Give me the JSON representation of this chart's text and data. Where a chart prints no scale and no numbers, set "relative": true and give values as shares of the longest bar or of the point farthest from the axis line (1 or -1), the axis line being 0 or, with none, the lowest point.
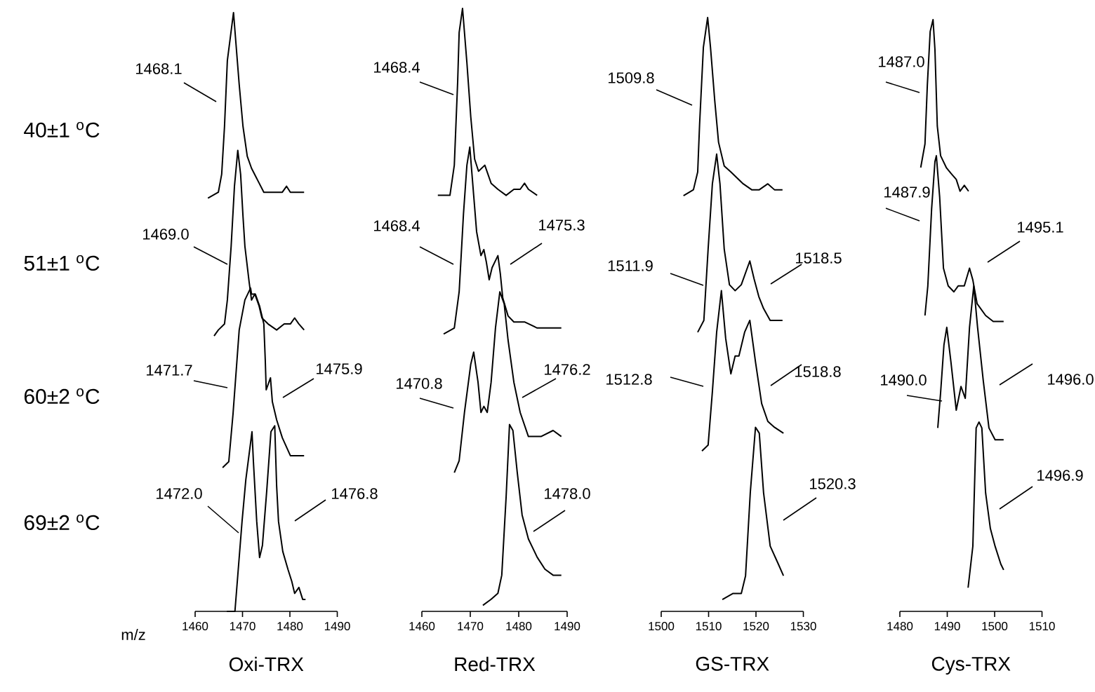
{
  "chart_data": [
    {
      "type": "line",
      "relative": true,
      "xlabel": "Oxi-TRX",
      "xlim": [
        1460,
        1490
      ],
      "xticks": [
        1460,
        1470,
        1480,
        1490
      ],
      "series": [
        {
          "color": "#000000",
          "x": [
            1462.7,
            1464.9,
            1465.6,
            1466.2,
            1466.8,
            1468.1,
            1469.3,
            1470.1,
            1471.0,
            1471.9,
            1473.2,
            1474.5,
            1476.7,
            1478.4,
            1479.3,
            1480.1,
            1481.5,
            1483.0
          ],
          "values": [
            0.69,
            0.7,
            0.73,
            0.81,
            0.92,
            1.0,
            0.88,
            0.81,
            0.76,
            0.74,
            0.72,
            0.7,
            0.7,
            0.7,
            0.71,
            0.7,
            0.7,
            0.7
          ]
        },
        {
          "color": "#000000",
          "x": [
            1464.0,
            1464.9,
            1466.2,
            1466.8,
            1467.6,
            1468.3,
            1469.0,
            1469.6,
            1470.1,
            1470.5,
            1471.4,
            1471.9,
            1472.6,
            1473.5,
            1474.1,
            1475.4,
            1477.2,
            1478.8,
            1480.1,
            1481.0,
            1481.9,
            1483.0
          ],
          "values": [
            0.46,
            0.47,
            0.48,
            0.52,
            0.61,
            0.71,
            0.77,
            0.73,
            0.66,
            0.61,
            0.55,
            0.52,
            0.53,
            0.51,
            0.49,
            0.48,
            0.47,
            0.48,
            0.48,
            0.49,
            0.48,
            0.47
          ]
        },
        {
          "color": "#000000",
          "x": [
            1465.8,
            1467.1,
            1468.0,
            1469.3,
            1470.5,
            1471.7,
            1471.9,
            1472.7,
            1473.6,
            1474.5,
            1474.8,
            1475.0,
            1475.9,
            1476.3,
            1477.2,
            1478.4,
            1480.1,
            1482.4,
            1483.0
          ],
          "values": [
            0.24,
            0.25,
            0.33,
            0.47,
            0.52,
            0.54,
            0.53,
            0.53,
            0.51,
            0.48,
            0.42,
            0.37,
            0.39,
            0.35,
            0.32,
            0.29,
            0.26,
            0.26,
            0.26
          ]
        },
        {
          "color": "#000000",
          "x": [
            1466.7,
            1468.4,
            1469.0,
            1469.9,
            1470.7,
            1472.0,
            1472.3,
            1473.0,
            1473.6,
            1474.2,
            1475.1,
            1476.0,
            1476.8,
            1477.2,
            1477.6,
            1478.5,
            1479.6,
            1480.4,
            1481.0,
            1481.9,
            1482.7,
            1483.3
          ],
          "values": [
            0.0,
            0.0,
            0.06,
            0.15,
            0.22,
            0.3,
            0.25,
            0.15,
            0.09,
            0.11,
            0.2,
            0.3,
            0.31,
            0.21,
            0.15,
            0.1,
            0.07,
            0.05,
            0.03,
            0.04,
            0.02,
            0.02
          ]
        }
      ],
      "annotations": [
        "40±1 $^{o}$C",
        "51±1 $^{o}$C",
        "60±2 $^{o}$C",
        "69±2 $^{o}$C",
        "m/z",
        "1468.1",
        "1469.0",
        "1471.7",
        "1475.9",
        "1472.0",
        "1476.8"
      ]
    },
    {
      "type": "line",
      "relative": true,
      "xlabel": "Red-TRX",
      "xlim": [
        1460,
        1490
      ],
      "xticks": [
        1460,
        1470,
        1480,
        1490
      ],
      "series": [
        {
          "color": "#000000",
          "x": [
            1463.3,
            1465.8,
            1466.7,
            1467.4,
            1467.7,
            1468.4,
            1469.3,
            1470.1,
            1470.9,
            1471.7,
            1473.0,
            1474.3,
            1475.7,
            1477.4,
            1479.0,
            1480.3,
            1481.2,
            1482.0,
            1483.8
          ],
          "values": [
            0.69,
            0.69,
            0.74,
            0.88,
            0.96,
            1.0,
            0.91,
            0.82,
            0.75,
            0.73,
            0.74,
            0.71,
            0.7,
            0.69,
            0.7,
            0.7,
            0.71,
            0.7,
            0.69
          ]
        },
        {
          "color": "#000000",
          "x": [
            1464.5,
            1466.7,
            1467.7,
            1468.6,
            1469.3,
            1469.9,
            1470.7,
            1471.3,
            1472.2,
            1472.8,
            1473.3,
            1473.9,
            1474.5,
            1475.7,
            1476.2,
            1476.7,
            1477.8,
            1479.0,
            1481.2,
            1483.8,
            1488.8
          ],
          "values": [
            0.46,
            0.47,
            0.53,
            0.66,
            0.74,
            0.77,
            0.69,
            0.63,
            0.59,
            0.6,
            0.58,
            0.55,
            0.57,
            0.59,
            0.56,
            0.52,
            0.49,
            0.48,
            0.48,
            0.47,
            0.47
          ]
        },
        {
          "color": "#000000",
          "x": [
            1466.7,
            1467.7,
            1468.8,
            1470.1,
            1470.7,
            1471.6,
            1472.2,
            1472.8,
            1473.5,
            1474.3,
            1475.2,
            1476.1,
            1477.0,
            1477.8,
            1479.0,
            1480.3,
            1482.0,
            1484.6,
            1487.1,
            1488.8
          ],
          "values": [
            0.23,
            0.25,
            0.33,
            0.41,
            0.43,
            0.38,
            0.33,
            0.34,
            0.33,
            0.38,
            0.47,
            0.53,
            0.51,
            0.45,
            0.38,
            0.33,
            0.29,
            0.29,
            0.3,
            0.29
          ]
        },
        {
          "color": "#000000",
          "x": [
            1472.6,
            1474.3,
            1475.7,
            1476.5,
            1477.4,
            1478.1,
            1478.8,
            1479.7,
            1480.7,
            1482.0,
            1483.8,
            1485.4,
            1487.1,
            1488.8
          ],
          "values": [
            0.01,
            0.02,
            0.03,
            0.06,
            0.19,
            0.31,
            0.3,
            0.23,
            0.16,
            0.12,
            0.09,
            0.07,
            0.06,
            0.06
          ]
        }
      ],
      "annotations": [
        "1468.4",
        "1468.4",
        "1475.3",
        "1470.8",
        "1476.2",
        "1478.0"
      ]
    },
    {
      "type": "line",
      "relative": true,
      "xlabel": "GS-TRX",
      "xlim": [
        1500,
        1530
      ],
      "xticks": [
        1500,
        1510,
        1520,
        1530
      ],
      "series": [
        {
          "color": "#000000",
          "x": [
            1504.7,
            1506.8,
            1507.7,
            1508.1,
            1508.9,
            1509.8,
            1510.4,
            1511.3,
            1512.1,
            1513.3,
            1514.7,
            1516.0,
            1517.3,
            1519.1,
            1520.7,
            1522.5,
            1523.9,
            1525.6
          ],
          "values": [
            0.7,
            0.71,
            0.74,
            0.82,
            0.95,
            1.0,
            0.95,
            0.86,
            0.79,
            0.75,
            0.74,
            0.73,
            0.72,
            0.71,
            0.71,
            0.72,
            0.71,
            0.71
          ]
        },
        {
          "color": "#000000",
          "x": [
            1507.7,
            1509.0,
            1509.9,
            1510.8,
            1511.7,
            1512.4,
            1513.3,
            1514.4,
            1515.6,
            1516.9,
            1517.8,
            1518.7,
            1519.6,
            1520.6,
            1521.6,
            1523.0,
            1525.6
          ],
          "values": [
            0.47,
            0.49,
            0.61,
            0.72,
            0.77,
            0.72,
            0.61,
            0.55,
            0.54,
            0.55,
            0.57,
            0.59,
            0.56,
            0.53,
            0.51,
            0.49,
            0.49
          ]
        },
        {
          "color": "#000000",
          "x": [
            1508.6,
            1509.9,
            1510.8,
            1511.7,
            1512.7,
            1513.6,
            1514.7,
            1515.6,
            1516.4,
            1517.6,
            1518.7,
            1519.9,
            1521.2,
            1522.5,
            1523.9,
            1525.8
          ],
          "values": [
            0.27,
            0.28,
            0.37,
            0.47,
            0.54,
            0.46,
            0.4,
            0.43,
            0.43,
            0.47,
            0.49,
            0.42,
            0.35,
            0.32,
            0.31,
            0.3
          ]
        },
        {
          "color": "#000000",
          "x": [
            1512.9,
            1515.1,
            1516.9,
            1517.8,
            1518.8,
            1519.9,
            1520.7,
            1521.6,
            1523.0,
            1524.7,
            1525.8
          ],
          "values": [
            0.02,
            0.03,
            0.03,
            0.06,
            0.2,
            0.31,
            0.3,
            0.2,
            0.11,
            0.08,
            0.06
          ]
        }
      ],
      "annotations": [
        "1509.8",
        "1511.9",
        "1518.5",
        "1512.8",
        "1518.8",
        "1520.3"
      ]
    },
    {
      "type": "line",
      "relative": true,
      "xlabel": "Cys-TRX",
      "xlim": [
        1480,
        1510
      ],
      "xticks": [
        1480,
        1490,
        1500,
        1510
      ],
      "series": [
        {
          "color": "#000000",
          "x": [
            1484.4,
            1485.3,
            1485.8,
            1486.4,
            1487.0,
            1487.4,
            1487.9,
            1488.6,
            1489.8,
            1490.8,
            1491.9,
            1492.7,
            1493.6,
            1494.5
          ],
          "values": [
            0.75,
            0.79,
            0.89,
            0.98,
            1.0,
            0.95,
            0.82,
            0.77,
            0.75,
            0.74,
            0.73,
            0.71,
            0.72,
            0.71
          ]
        },
        {
          "color": "#000000",
          "x": [
            1485.3,
            1485.9,
            1486.7,
            1487.4,
            1487.7,
            1488.4,
            1489.2,
            1490.2,
            1491.4,
            1492.3,
            1493.6,
            1494.7,
            1495.4,
            1496.3,
            1498.1,
            1499.7,
            1501.9
          ],
          "values": [
            0.5,
            0.55,
            0.68,
            0.76,
            0.77,
            0.7,
            0.58,
            0.55,
            0.54,
            0.55,
            0.55,
            0.58,
            0.56,
            0.52,
            0.5,
            0.49,
            0.49
          ]
        },
        {
          "color": "#000000",
          "x": [
            1488.0,
            1488.6,
            1489.3,
            1489.9,
            1490.8,
            1491.9,
            1492.9,
            1493.8,
            1494.7,
            1495.6,
            1496.4,
            1497.6,
            1498.8,
            1500.1,
            1501.9
          ],
          "values": [
            0.31,
            0.37,
            0.45,
            0.48,
            0.42,
            0.34,
            0.38,
            0.36,
            0.48,
            0.55,
            0.48,
            0.39,
            0.31,
            0.29,
            0.29
          ]
        },
        {
          "color": "#000000",
          "x": [
            1494.4,
            1495.4,
            1496.1,
            1496.7,
            1497.3,
            1498.1,
            1499.1,
            1500.1,
            1501.3,
            1501.9
          ],
          "values": [
            0.04,
            0.11,
            0.31,
            0.32,
            0.31,
            0.2,
            0.14,
            0.11,
            0.08,
            0.07
          ]
        }
      ],
      "annotations": [
        "1487.0",
        "1487.9",
        "1495.1",
        "1490.0",
        "1496.0",
        "1496.9"
      ]
    }
  ]
}
